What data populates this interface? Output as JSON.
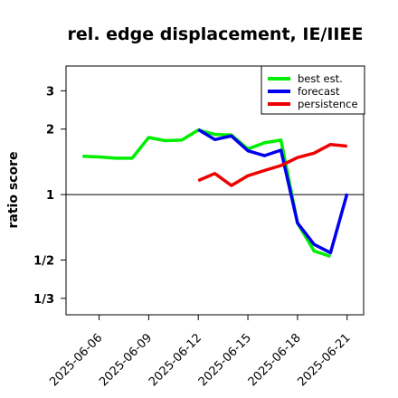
{
  "chart_data": {
    "type": "line",
    "title": "rel. edge displacement, IE/IIEE",
    "ylabel": "ratio score",
    "y_scale": "log",
    "ylim": [
      0.28,
      3.9
    ],
    "xlim": [
      "2025-06-04",
      "2025-06-22"
    ],
    "reference_line": 1,
    "y_ticks": [
      {
        "value": 3,
        "label": "3"
      },
      {
        "value": 2,
        "label": "2"
      },
      {
        "value": 1,
        "label": "1"
      },
      {
        "value": 0.5,
        "label": "1/2"
      },
      {
        "value": 0.3333,
        "label": "1/3"
      }
    ],
    "x_ticks": [
      {
        "date": "2025-06-06",
        "label": "2025-06-06",
        "color": "#000000"
      },
      {
        "date": "2025-06-09",
        "label": "2025-06-09",
        "color": "#000000"
      },
      {
        "date": "2025-06-12",
        "label": "2025-06-12",
        "color": "#1a8a1a"
      },
      {
        "date": "2025-06-15",
        "label": "2025-06-15",
        "color": "#000000"
      },
      {
        "date": "2025-06-18",
        "label": "2025-06-18",
        "color": "#000000"
      },
      {
        "date": "2025-06-21",
        "label": "2025-06-21",
        "color": "#000000"
      }
    ],
    "legend_position": "top-right",
    "series": [
      {
        "name": "best est.",
        "color": "#00ee00",
        "x": [
          "2025-06-05",
          "2025-06-06",
          "2025-06-07",
          "2025-06-08",
          "2025-06-09",
          "2025-06-10",
          "2025-06-11",
          "2025-06-12",
          "2025-06-13",
          "2025-06-14",
          "2025-06-15",
          "2025-06-16",
          "2025-06-17",
          "2025-06-18",
          "2025-06-19",
          "2025-06-20"
        ],
        "y": [
          1.5,
          1.49,
          1.47,
          1.47,
          1.83,
          1.77,
          1.78,
          1.98,
          1.89,
          1.88,
          1.62,
          1.73,
          1.78,
          0.74,
          0.55,
          0.52
        ]
      },
      {
        "name": "forecast",
        "color": "#0000ee",
        "x": [
          "2025-06-12",
          "2025-06-13",
          "2025-06-14",
          "2025-06-15",
          "2025-06-16",
          "2025-06-17",
          "2025-06-18",
          "2025-06-19",
          "2025-06-20",
          "2025-06-21"
        ],
        "y": [
          1.99,
          1.79,
          1.86,
          1.59,
          1.51,
          1.6,
          0.74,
          0.59,
          0.54,
          1.01
        ]
      },
      {
        "name": "persistence",
        "color": "#ee0000",
        "x": [
          "2025-06-12",
          "2025-06-13",
          "2025-06-14",
          "2025-06-15",
          "2025-06-16",
          "2025-06-17",
          "2025-06-18",
          "2025-06-19",
          "2025-06-20",
          "2025-06-21"
        ],
        "y": [
          1.16,
          1.25,
          1.1,
          1.22,
          1.29,
          1.36,
          1.48,
          1.55,
          1.7,
          1.67
        ]
      }
    ]
  }
}
